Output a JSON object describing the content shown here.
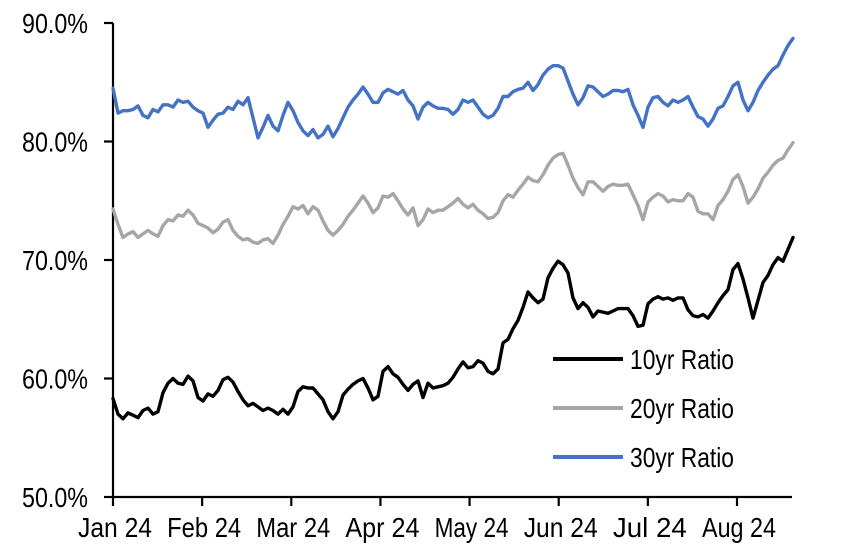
{
  "chart_data": {
    "type": "line",
    "title": "",
    "grid": false,
    "background": "#ffffff",
    "axis_color": "#000000",
    "x_axis": {
      "tick_labels": [
        "Jan 24",
        "Feb 24",
        "Mar 24",
        "Apr 24",
        "May 24",
        "Jun 24",
        "Jul 24",
        "Aug 24"
      ]
    },
    "y_axis": {
      "tick_labels": [
        "50.0%",
        "60.0%",
        "70.0%",
        "80.0%",
        "90.0%"
      ],
      "min": 50,
      "max": 90,
      "step": 10,
      "unit": "%"
    },
    "legend": {
      "position": "inside-lower-right",
      "entries": [
        "10yr Ratio",
        "20yr Ratio",
        "30yr Ratio"
      ]
    },
    "series": [
      {
        "name": "10yr Ratio",
        "color": "#000000",
        "values": [
          58.3,
          57.0,
          56.6,
          57.1,
          56.9,
          56.7,
          57.3,
          57.5,
          57.0,
          57.2,
          58.8,
          59.6,
          60.0,
          59.6,
          59.5,
          60.2,
          59.8,
          58.4,
          58.1,
          58.7,
          58.5,
          59.0,
          59.9,
          60.1,
          59.7,
          58.9,
          58.2,
          57.7,
          57.9,
          57.6,
          57.3,
          57.5,
          57.3,
          57.0,
          57.4,
          57.0,
          57.6,
          58.9,
          59.3,
          59.2,
          59.2,
          58.7,
          58.2,
          57.2,
          56.6,
          57.2,
          58.6,
          59.1,
          59.5,
          59.8,
          60.0,
          59.2,
          58.2,
          58.5,
          60.6,
          61.0,
          60.4,
          60.1,
          59.5,
          59.0,
          59.5,
          59.8,
          58.4,
          59.6,
          59.2,
          59.3,
          59.4,
          59.6,
          60.1,
          60.8,
          61.4,
          60.9,
          61.0,
          61.5,
          61.3,
          60.6,
          60.4,
          60.8,
          63.0,
          63.3,
          64.2,
          64.9,
          66.0,
          67.3,
          66.8,
          66.4,
          66.7,
          68.5,
          69.3,
          69.9,
          69.6,
          68.9,
          66.8,
          65.9,
          66.4,
          66.0,
          65.2,
          65.7,
          65.6,
          65.5,
          65.7,
          65.9,
          65.9,
          65.9,
          65.3,
          64.4,
          64.5,
          66.3,
          66.7,
          66.9,
          66.7,
          66.8,
          66.6,
          66.8,
          66.8,
          65.8,
          65.3,
          65.2,
          65.4,
          65.1,
          65.7,
          66.4,
          67.0,
          67.5,
          69.2,
          69.7,
          68.4,
          66.8,
          65.1,
          66.6,
          68.1,
          68.7,
          69.6,
          70.2,
          69.9,
          70.9,
          71.9
        ]
      },
      {
        "name": "20yr Ratio",
        "color": "#A6A6A6",
        "values": [
          74.3,
          73.0,
          71.9,
          72.2,
          72.4,
          71.9,
          72.2,
          72.5,
          72.2,
          72.0,
          72.9,
          73.4,
          73.3,
          73.8,
          73.7,
          74.2,
          73.8,
          73.1,
          72.9,
          72.7,
          72.3,
          72.6,
          73.2,
          73.4,
          72.5,
          72.0,
          71.7,
          71.8,
          71.5,
          71.4,
          71.7,
          71.8,
          71.4,
          72.1,
          73.0,
          73.7,
          74.5,
          74.3,
          74.6,
          73.9,
          74.5,
          74.2,
          73.3,
          72.5,
          72.1,
          72.5,
          73.0,
          73.7,
          74.2,
          74.8,
          75.4,
          74.8,
          74.0,
          74.4,
          75.4,
          75.3,
          75.6,
          75.0,
          74.3,
          73.8,
          74.4,
          72.9,
          73.4,
          74.3,
          74.0,
          74.2,
          74.2,
          74.5,
          74.8,
          75.2,
          74.7,
          74.4,
          74.7,
          74.2,
          73.9,
          73.5,
          73.6,
          74.0,
          75.0,
          75.5,
          75.3,
          75.9,
          76.4,
          77.0,
          76.7,
          76.6,
          77.2,
          78.0,
          78.6,
          78.9,
          79.0,
          78.0,
          76.9,
          76.1,
          75.5,
          76.6,
          76.6,
          76.2,
          75.8,
          76.2,
          76.4,
          76.3,
          76.3,
          76.4,
          75.5,
          74.6,
          73.4,
          74.9,
          75.3,
          75.6,
          75.4,
          74.9,
          75.1,
          75.0,
          75.0,
          75.6,
          75.3,
          74.1,
          73.9,
          73.9,
          73.4,
          74.6,
          75.1,
          75.8,
          76.8,
          77.2,
          76.2,
          74.8,
          75.3,
          76.0,
          76.9,
          77.4,
          78.0,
          78.4,
          78.6,
          79.3,
          79.9
        ]
      },
      {
        "name": "30yr Ratio",
        "color": "#4472C4",
        "values": [
          84.5,
          82.4,
          82.6,
          82.6,
          82.7,
          83.0,
          82.2,
          82.0,
          82.7,
          82.5,
          83.1,
          83.1,
          82.9,
          83.5,
          83.3,
          83.4,
          82.9,
          82.6,
          82.4,
          81.2,
          81.8,
          82.3,
          82.4,
          82.9,
          82.7,
          83.4,
          83.1,
          83.7,
          82.0,
          80.3,
          81.2,
          82.2,
          81.3,
          80.9,
          82.2,
          83.3,
          82.6,
          81.6,
          80.9,
          80.5,
          81.0,
          80.3,
          80.6,
          81.3,
          80.4,
          81.1,
          82.0,
          82.9,
          83.5,
          84.0,
          84.6,
          84.0,
          83.3,
          83.3,
          84.1,
          84.4,
          84.2,
          84.0,
          84.3,
          83.5,
          83.0,
          81.9,
          82.9,
          83.3,
          83.0,
          82.8,
          82.8,
          82.7,
          82.3,
          82.7,
          83.5,
          83.3,
          83.5,
          82.9,
          82.3,
          82.0,
          82.2,
          82.8,
          83.8,
          83.8,
          84.2,
          84.4,
          84.5,
          85.0,
          84.3,
          84.8,
          85.6,
          86.1,
          86.4,
          86.4,
          86.2,
          85.1,
          84.0,
          83.1,
          83.7,
          84.7,
          84.6,
          84.2,
          83.8,
          84.0,
          84.3,
          84.3,
          84.2,
          84.4,
          83.1,
          82.2,
          81.2,
          82.9,
          83.7,
          83.8,
          83.3,
          83.0,
          83.5,
          83.3,
          83.5,
          83.8,
          82.9,
          82.1,
          81.9,
          81.3,
          81.9,
          82.8,
          83.0,
          83.8,
          84.7,
          85.0,
          83.5,
          82.6,
          83.3,
          84.3,
          85.0,
          85.6,
          86.1,
          86.4,
          87.3,
          88.1,
          88.7
        ]
      }
    ]
  }
}
